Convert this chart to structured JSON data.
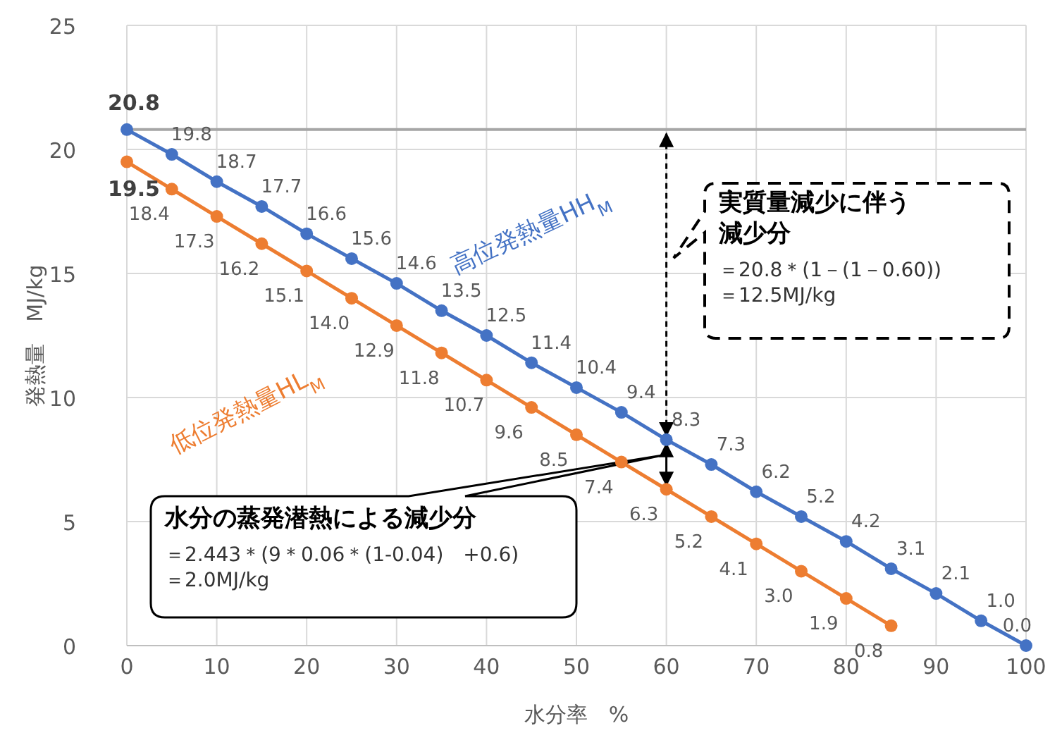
{
  "chart_data": {
    "type": "line",
    "xlabel": "水分率　%",
    "ylabel": "発熱量　MJ/kg",
    "x": [
      0,
      5,
      10,
      15,
      20,
      25,
      30,
      35,
      40,
      45,
      50,
      55,
      60,
      65,
      70,
      75,
      80,
      85,
      90,
      95,
      100
    ],
    "series": [
      {
        "name": "高位発熱量HH$_{M}$",
        "color": "#4472c4",
        "values": [
          20.8,
          19.8,
          18.7,
          17.7,
          16.6,
          15.6,
          14.6,
          13.5,
          12.5,
          11.4,
          10.4,
          9.4,
          8.3,
          7.3,
          6.2,
          5.2,
          4.2,
          3.1,
          2.1,
          1.0,
          0.0
        ],
        "value_labels": [
          "20.8",
          "19.8",
          "18.7",
          "17.7",
          "16.6",
          "15.6",
          "14.6",
          "13.5",
          "12.5",
          "11.4",
          "10.4",
          "9.4",
          "8.3",
          "7.3",
          "6.2",
          "5.2",
          "4.2",
          "3.1",
          "2.1",
          "1.0",
          "0.0"
        ]
      },
      {
        "name": "低位発熱量HL$_{M}$",
        "color": "#ed7d31",
        "values": [
          19.5,
          18.4,
          17.3,
          16.2,
          15.1,
          14.0,
          12.9,
          11.8,
          10.7,
          9.6,
          8.5,
          7.4,
          6.3,
          5.2,
          4.1,
          3.0,
          1.9,
          0.8,
          null,
          null,
          null
        ],
        "value_labels": [
          "19.5",
          "18.4",
          "17.3",
          "16.2",
          "15.1",
          "14.0",
          "12.9",
          "11.8",
          "10.7",
          "9.6",
          "8.5",
          "7.4",
          "6.3",
          "5.2",
          "4.1",
          "3.0",
          "1.9",
          "0.8",
          null,
          null,
          null
        ]
      }
    ],
    "xlim": [
      0,
      100
    ],
    "xticks": [
      0,
      10,
      20,
      30,
      40,
      50,
      60,
      70,
      80,
      90,
      100
    ],
    "ylim": [
      0,
      25
    ],
    "yticks": [
      0,
      5,
      10,
      15,
      20,
      25
    ],
    "grid": true,
    "marker": "circle",
    "ref_lines": [
      {
        "axis": "y",
        "value": 20.8,
        "color": "#a6a6a6"
      }
    ],
    "annotations": [
      "実質量減少に伴う減少分",
      "＝20.8＊(1－(1－0.60))",
      "＝12.5MJ/kg",
      "水分の蒸発潜熱による減少分",
      "＝2.443＊(9＊0.06＊(1-0.04)　+0.6)",
      "＝2.0MJ/kg"
    ]
  }
}
